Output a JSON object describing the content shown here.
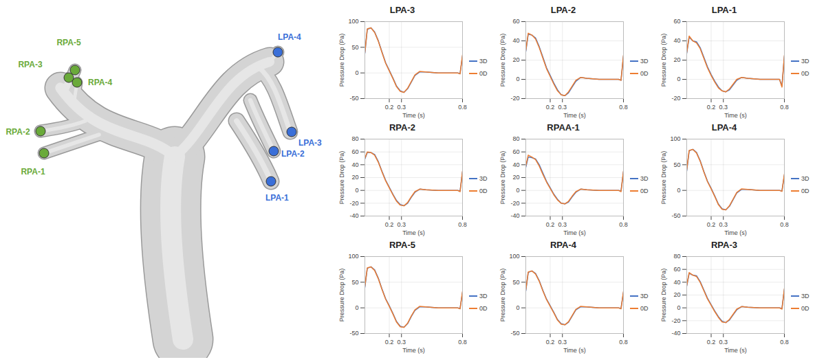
{
  "chart_data": [
    {
      "type": "line",
      "title": "LPA-3",
      "x_label": "Time (s)",
      "y_label": "Pressure Drop (Pa)",
      "x": [
        0,
        0.02,
        0.05,
        0.08,
        0.11,
        0.14,
        0.17,
        0.2,
        0.23,
        0.26,
        0.29,
        0.32,
        0.35,
        0.38,
        0.41,
        0.45,
        0.5,
        0.6,
        0.7,
        0.76,
        0.78,
        0.8
      ],
      "series": [
        {
          "name": "3D",
          "color": "#4472c4",
          "values": [
            38,
            85,
            88,
            80,
            63,
            41,
            20,
            5,
            -10,
            -26,
            -35,
            -38,
            -31,
            -18,
            -5,
            2,
            2,
            0,
            0,
            0,
            -1,
            33
          ]
        },
        {
          "name": "0D",
          "color": "#ed7d31",
          "values": [
            40,
            86,
            88,
            79,
            62,
            40,
            19,
            4,
            -11,
            -27,
            -36,
            -38,
            -30,
            -17,
            -4,
            3,
            2,
            0,
            0,
            0,
            -2,
            35
          ]
        }
      ],
      "xlim": [
        0,
        0.8
      ],
      "xticks": [
        0.2,
        0.3,
        0.8
      ],
      "ylim": [
        -50,
        100
      ],
      "yticks": [
        -50,
        0,
        50,
        100
      ],
      "grid": true,
      "legend": "right"
    },
    {
      "type": "line",
      "title": "LPA-2",
      "x_label": "Time (s)",
      "y_label": "Pressure Drop (Pa)",
      "x": [
        0,
        0.02,
        0.05,
        0.08,
        0.11,
        0.14,
        0.17,
        0.2,
        0.23,
        0.26,
        0.29,
        0.32,
        0.35,
        0.38,
        0.41,
        0.45,
        0.5,
        0.6,
        0.7,
        0.76,
        0.78,
        0.8
      ],
      "series": [
        {
          "name": "3D",
          "color": "#4472c4",
          "values": [
            29,
            47,
            46,
            43,
            34,
            23,
            12,
            4,
            -4,
            -11,
            -16,
            -17,
            -14,
            -8,
            -2,
            2,
            1,
            0,
            0,
            0,
            -1,
            24
          ]
        },
        {
          "name": "0D",
          "color": "#ed7d31",
          "values": [
            30,
            48,
            46,
            42,
            33,
            22,
            11,
            3,
            -5,
            -12,
            -16,
            -17,
            -13,
            -7,
            -1,
            2,
            1,
            0,
            0,
            0,
            -1,
            25
          ]
        }
      ],
      "xlim": [
        0,
        0.8
      ],
      "xticks": [
        0.2,
        0.3,
        0.8
      ],
      "ylim": [
        -20,
        60
      ],
      "yticks": [
        -20,
        0,
        20,
        40,
        60
      ],
      "grid": true,
      "legend": "right"
    },
    {
      "type": "line",
      "title": "LPA-1",
      "x_label": "Time (s)",
      "y_label": "Pressure Drop (Pa)",
      "x": [
        0,
        0.02,
        0.05,
        0.08,
        0.11,
        0.14,
        0.17,
        0.2,
        0.23,
        0.26,
        0.29,
        0.32,
        0.35,
        0.38,
        0.41,
        0.45,
        0.5,
        0.6,
        0.7,
        0.76,
        0.78,
        0.8
      ],
      "series": [
        {
          "name": "3D",
          "color": "#4472c4",
          "values": [
            27,
            44,
            40,
            39,
            33,
            23,
            13,
            5,
            -2,
            -8,
            -12,
            -13,
            -11,
            -6,
            -1,
            2,
            1,
            0,
            0,
            0,
            -7,
            24
          ]
        },
        {
          "name": "0D",
          "color": "#ed7d31",
          "values": [
            28,
            45,
            40,
            38,
            32,
            22,
            12,
            4,
            -3,
            -9,
            -12,
            -13,
            -10,
            -5,
            0,
            2,
            1,
            0,
            0,
            0,
            -8,
            25
          ]
        }
      ],
      "xlim": [
        0,
        0.8
      ],
      "xticks": [
        0.2,
        0.3,
        0.8
      ],
      "ylim": [
        -20,
        60
      ],
      "yticks": [
        -20,
        0,
        20,
        40,
        60
      ],
      "grid": true,
      "legend": "right"
    },
    {
      "type": "line",
      "title": "RPA-2",
      "x_label": "Time (s)",
      "y_label": "Pressure Drop (Pa)",
      "x": [
        0,
        0.02,
        0.05,
        0.08,
        0.11,
        0.14,
        0.17,
        0.2,
        0.23,
        0.26,
        0.29,
        0.32,
        0.35,
        0.38,
        0.41,
        0.45,
        0.5,
        0.6,
        0.7,
        0.76,
        0.78,
        0.8
      ],
      "series": [
        {
          "name": "3D",
          "color": "#4472c4",
          "values": [
            49,
            59,
            59,
            56,
            45,
            30,
            16,
            5,
            -6,
            -16,
            -22,
            -24,
            -20,
            -11,
            -3,
            2,
            1,
            0,
            0,
            0,
            -1,
            29
          ]
        },
        {
          "name": "0D",
          "color": "#ed7d31",
          "values": [
            50,
            60,
            59,
            55,
            44,
            29,
            15,
            4,
            -7,
            -17,
            -23,
            -24,
            -19,
            -10,
            -2,
            2,
            1,
            0,
            0,
            0,
            -2,
            30
          ]
        }
      ],
      "xlim": [
        0,
        0.8
      ],
      "xticks": [
        0.2,
        0.3,
        0.8
      ],
      "ylim": [
        -40,
        80
      ],
      "yticks": [
        -40,
        -20,
        0,
        20,
        40,
        60,
        80
      ],
      "grid": true,
      "legend": "right"
    },
    {
      "type": "line",
      "title": "RPAA-1",
      "x_label": "Time (s)",
      "y_label": "Pressure Drop (Pa)",
      "x": [
        0,
        0.02,
        0.05,
        0.08,
        0.11,
        0.14,
        0.17,
        0.2,
        0.23,
        0.26,
        0.29,
        0.32,
        0.35,
        0.38,
        0.41,
        0.45,
        0.5,
        0.6,
        0.7,
        0.76,
        0.78,
        0.8
      ],
      "series": [
        {
          "name": "3D",
          "color": "#4472c4",
          "values": [
            36,
            52,
            51,
            49,
            40,
            27,
            14,
            4,
            -6,
            -14,
            -20,
            -21,
            -18,
            -10,
            -3,
            2,
            1,
            0,
            0,
            0,
            -1,
            29
          ]
        },
        {
          "name": "0D",
          "color": "#ed7d31",
          "values": [
            38,
            55,
            52,
            48,
            38,
            25,
            13,
            3,
            -7,
            -15,
            -20,
            -21,
            -17,
            -9,
            -2,
            2,
            1,
            0,
            0,
            0,
            -2,
            30
          ]
        }
      ],
      "xlim": [
        0,
        0.8
      ],
      "xticks": [
        0.2,
        0.3,
        0.8
      ],
      "ylim": [
        -40,
        80
      ],
      "yticks": [
        -40,
        -20,
        0,
        20,
        40,
        60,
        80
      ],
      "grid": true,
      "legend": "right"
    },
    {
      "type": "line",
      "title": "LPA-4",
      "x_label": "Time (s)",
      "y_label": "Pressure Drop (Pa)",
      "x": [
        0,
        0.02,
        0.05,
        0.08,
        0.11,
        0.14,
        0.17,
        0.2,
        0.23,
        0.26,
        0.29,
        0.32,
        0.35,
        0.38,
        0.41,
        0.45,
        0.5,
        0.6,
        0.7,
        0.76,
        0.78,
        0.8
      ],
      "series": [
        {
          "name": "3D",
          "color": "#4472c4",
          "values": [
            38,
            77,
            80,
            74,
            58,
            37,
            18,
            4,
            -11,
            -27,
            -36,
            -38,
            -31,
            -18,
            -5,
            2,
            2,
            0,
            0,
            0,
            -1,
            30
          ]
        },
        {
          "name": "0D",
          "color": "#ed7d31",
          "values": [
            40,
            78,
            80,
            73,
            57,
            36,
            17,
            3,
            -12,
            -28,
            -37,
            -38,
            -30,
            -17,
            -4,
            3,
            2,
            0,
            0,
            0,
            -2,
            32
          ]
        }
      ],
      "xlim": [
        0,
        0.8
      ],
      "xticks": [
        0.2,
        0.3,
        0.8
      ],
      "ylim": [
        -50,
        100
      ],
      "yticks": [
        -50,
        0,
        50,
        100
      ],
      "grid": true,
      "legend": "right"
    },
    {
      "type": "line",
      "title": "RPA-5",
      "x_label": "Time (s)",
      "y_label": "Pressure Drop (Pa)",
      "x": [
        0,
        0.02,
        0.05,
        0.08,
        0.11,
        0.14,
        0.17,
        0.2,
        0.23,
        0.26,
        0.29,
        0.32,
        0.35,
        0.38,
        0.41,
        0.45,
        0.5,
        0.6,
        0.7,
        0.76,
        0.78,
        0.8
      ],
      "series": [
        {
          "name": "3D",
          "color": "#4472c4",
          "values": [
            40,
            77,
            80,
            74,
            58,
            37,
            18,
            4,
            -11,
            -27,
            -36,
            -38,
            -31,
            -17,
            -5,
            2,
            2,
            0,
            0,
            0,
            -1,
            30
          ]
        },
        {
          "name": "0D",
          "color": "#ed7d31",
          "values": [
            42,
            78,
            80,
            73,
            57,
            36,
            17,
            3,
            -12,
            -28,
            -37,
            -38,
            -30,
            -16,
            -4,
            3,
            2,
            0,
            0,
            0,
            -2,
            32
          ]
        }
      ],
      "xlim": [
        0,
        0.8
      ],
      "xticks": [
        0.2,
        0.3,
        0.8
      ],
      "ylim": [
        -50,
        100
      ],
      "yticks": [
        -50,
        0,
        50,
        100
      ],
      "grid": true,
      "legend": "right"
    },
    {
      "type": "line",
      "title": "RPA-4",
      "x_label": "Time (s)",
      "y_label": "Pressure Drop (Pa)",
      "x": [
        0,
        0.02,
        0.05,
        0.08,
        0.11,
        0.14,
        0.17,
        0.2,
        0.23,
        0.26,
        0.29,
        0.32,
        0.35,
        0.38,
        0.41,
        0.45,
        0.5,
        0.6,
        0.7,
        0.76,
        0.78,
        0.8
      ],
      "series": [
        {
          "name": "3D",
          "color": "#4472c4",
          "values": [
            33,
            69,
            72,
            67,
            53,
            34,
            17,
            4,
            -9,
            -23,
            -31,
            -33,
            -28,
            -16,
            -4,
            2,
            2,
            0,
            0,
            0,
            -1,
            30
          ]
        },
        {
          "name": "0D",
          "color": "#ed7d31",
          "values": [
            35,
            70,
            72,
            66,
            52,
            33,
            16,
            3,
            -10,
            -24,
            -32,
            -33,
            -27,
            -15,
            -3,
            3,
            2,
            0,
            0,
            0,
            -2,
            32
          ]
        }
      ],
      "xlim": [
        0,
        0.8
      ],
      "xticks": [
        0.2,
        0.3,
        0.8
      ],
      "ylim": [
        -50,
        100
      ],
      "yticks": [
        -50,
        0,
        50,
        100
      ],
      "grid": true,
      "legend": "right"
    },
    {
      "type": "line",
      "title": "RPA-3",
      "x_label": "Time (s)",
      "y_label": "Pressure Drop (Pa)",
      "x": [
        0,
        0.02,
        0.05,
        0.08,
        0.11,
        0.14,
        0.17,
        0.2,
        0.23,
        0.26,
        0.29,
        0.32,
        0.35,
        0.38,
        0.41,
        0.45,
        0.5,
        0.6,
        0.7,
        0.76,
        0.78,
        0.8
      ],
      "series": [
        {
          "name": "3D",
          "color": "#4472c4",
          "values": [
            34,
            54,
            51,
            50,
            41,
            28,
            15,
            5,
            -5,
            -14,
            -21,
            -23,
            -19,
            -11,
            -3,
            2,
            1,
            0,
            0,
            0,
            -1,
            29
          ]
        },
        {
          "name": "0D",
          "color": "#ed7d31",
          "values": [
            35,
            55,
            51,
            49,
            40,
            27,
            14,
            4,
            -6,
            -15,
            -22,
            -23,
            -18,
            -10,
            -2,
            2,
            1,
            0,
            0,
            0,
            -2,
            30
          ]
        }
      ],
      "xlim": [
        0,
        0.8
      ],
      "xticks": [
        0.2,
        0.3,
        0.8
      ],
      "ylim": [
        -40,
        80
      ],
      "yticks": [
        -40,
        -20,
        0,
        20,
        40,
        60,
        80
      ],
      "grid": true,
      "legend": "right"
    }
  ],
  "diagram": {
    "points": [
      {
        "label": "RPA-5",
        "color": "#6aaa3a"
      },
      {
        "label": "RPA-3",
        "color": "#6aaa3a"
      },
      {
        "label": "RPA-4",
        "color": "#6aaa3a"
      },
      {
        "label": "RPA-2",
        "color": "#6aaa3a"
      },
      {
        "label": "RPA-1",
        "color": "#6aaa3a"
      },
      {
        "label": "LPA-4",
        "color": "#3a6fd8"
      },
      {
        "label": "LPA-3",
        "color": "#3a6fd8"
      },
      {
        "label": "LPA-2",
        "color": "#3a6fd8"
      },
      {
        "label": "LPA-1",
        "color": "#3a6fd8"
      }
    ]
  }
}
